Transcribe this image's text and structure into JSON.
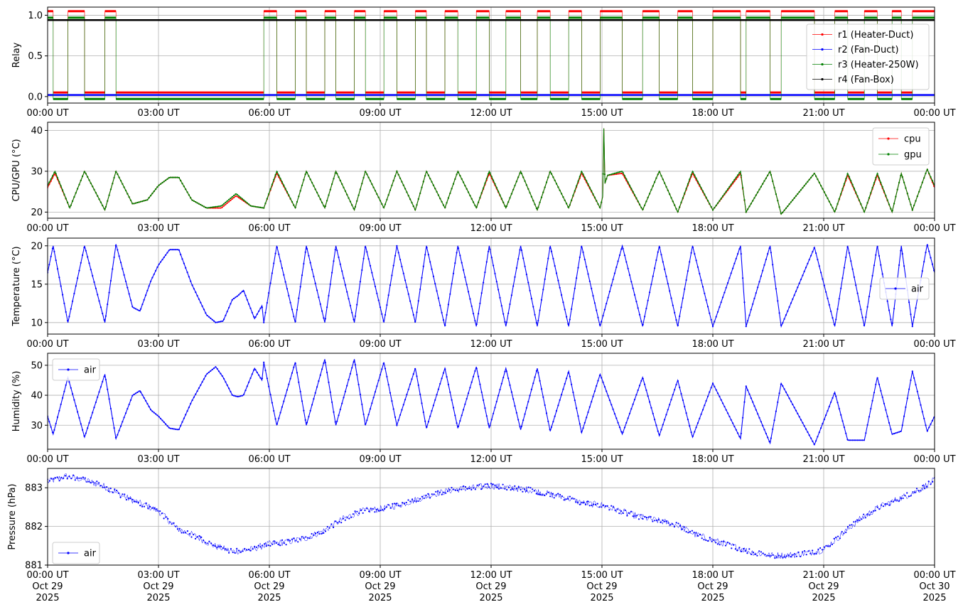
{
  "figure": {
    "x_ticks": [
      "00:00 UT",
      "03:00 UT",
      "06:00 UT",
      "09:00 UT",
      "12:00 UT",
      "15:00 UT",
      "18:00 UT",
      "21:00 UT",
      "00:00 UT"
    ],
    "x_date_labels": [
      [
        "Oct 29",
        "2025"
      ],
      [
        "Oct 29",
        "2025"
      ],
      [
        "Oct 29",
        "2025"
      ],
      [
        "Oct 29",
        "2025"
      ],
      [
        "Oct 29",
        "2025"
      ],
      [
        "Oct 29",
        "2025"
      ],
      [
        "Oct 29",
        "2025"
      ],
      [
        "Oct 29",
        "2025"
      ],
      [
        "Oct 30",
        "2025"
      ]
    ],
    "x_range_hours": [
      0,
      24
    ],
    "colors": {
      "red": "#ff0000",
      "blue": "#0000ff",
      "green": "#008000",
      "black": "#000000",
      "grid": "#b0b0b0"
    }
  },
  "chart_data": [
    {
      "type": "line",
      "ylabel": "Relay",
      "ylim": [
        -0.08,
        1.1
      ],
      "yticks": [
        0.0,
        0.5,
        1.0
      ],
      "ytick_labels": [
        "0.0",
        "0.5",
        "1.0"
      ],
      "grid": true,
      "legend": "right",
      "note": "heater/fan duct relays cycle ON (1) and OFF (0); r4 fan-box relay stays ON",
      "on_intervals_hours": [
        [
          0,
          0.15
        ],
        [
          0.55,
          1.0
        ],
        [
          1.55,
          1.85
        ],
        [
          5.85,
          6.2
        ],
        [
          6.7,
          7.0
        ],
        [
          7.5,
          7.8
        ],
        [
          8.3,
          8.6
        ],
        [
          9.1,
          9.45
        ],
        [
          9.95,
          10.25
        ],
        [
          10.75,
          11.1
        ],
        [
          11.6,
          11.95
        ],
        [
          12.4,
          12.8
        ],
        [
          13.25,
          13.6
        ],
        [
          14.1,
          14.45
        ],
        [
          14.95,
          15.55
        ],
        [
          16.1,
          16.55
        ],
        [
          17.05,
          17.45
        ],
        [
          18.0,
          18.75
        ],
        [
          18.9,
          19.55
        ],
        [
          19.85,
          20.75
        ],
        [
          21.3,
          21.65
        ],
        [
          22.1,
          22.45
        ],
        [
          22.85,
          23.1
        ],
        [
          23.4,
          24.0
        ]
      ],
      "series": [
        {
          "name": "r1 (Heater-Duct)",
          "color": "#ff0000",
          "on_value": 1.05,
          "off_value": 0.05
        },
        {
          "name": "r2 (Fan-Duct)",
          "color": "#0000ff",
          "constant": 0.02
        },
        {
          "name": "r3 (Heater-250W)",
          "color": "#008000",
          "on_value": 0.97,
          "off_value": -0.03
        },
        {
          "name": "r4 (Fan-Box)",
          "color": "#000000",
          "constant": 0.94
        }
      ]
    },
    {
      "type": "line",
      "ylabel": "CPU/GPU (°C)",
      "ylim": [
        18.5,
        42
      ],
      "yticks": [
        20,
        30,
        40
      ],
      "ytick_labels": [
        "20",
        "30",
        "40"
      ],
      "grid": true,
      "legend": "top-right",
      "spike": {
        "x_hours": 15.05,
        "peak": 40.5
      },
      "series": [
        {
          "name": "cpu",
          "color": "#ff0000",
          "x_hours": [
            0,
            0.2,
            0.6,
            1.0,
            1.55,
            1.85,
            2.3,
            2.7,
            3.0,
            3.3,
            3.55,
            3.9,
            4.3,
            4.7,
            5.1,
            5.5,
            5.85,
            6.2,
            6.7,
            7.0,
            7.5,
            7.8,
            8.3,
            8.6,
            9.1,
            9.45,
            9.95,
            10.25,
            10.75,
            11.1,
            11.6,
            11.95,
            12.4,
            12.8,
            13.25,
            13.6,
            14.1,
            14.45,
            14.95,
            15.15,
            15.55,
            16.1,
            16.55,
            17.05,
            17.45,
            18.0,
            18.75,
            18.9,
            19.55,
            19.85,
            20.75,
            21.3,
            21.65,
            22.1,
            22.45,
            22.85,
            23.1,
            23.4,
            23.8,
            24.0
          ],
          "values": [
            26,
            29.5,
            21,
            30,
            20.5,
            30,
            22,
            23,
            26.5,
            28.5,
            28.5,
            23,
            21,
            21,
            24,
            21.5,
            21,
            29.5,
            21,
            30,
            21,
            30,
            20.5,
            30,
            21,
            30,
            20.5,
            30,
            21,
            30,
            21,
            29.5,
            21,
            30,
            20.5,
            30,
            21,
            29.5,
            21,
            29,
            29.5,
            20.5,
            30,
            20,
            29.5,
            20.5,
            29.5,
            20,
            30,
            19.5,
            29.5,
            20,
            29,
            20,
            29,
            20,
            29.5,
            20.5,
            30.5,
            26
          ]
        },
        {
          "name": "gpu",
          "color": "#008000",
          "x_hours": [
            0,
            0.2,
            0.6,
            1.0,
            1.55,
            1.85,
            2.3,
            2.7,
            3.0,
            3.3,
            3.55,
            3.9,
            4.3,
            4.7,
            5.1,
            5.5,
            5.85,
            6.2,
            6.7,
            7.0,
            7.5,
            7.8,
            8.3,
            8.6,
            9.1,
            9.45,
            9.95,
            10.25,
            10.75,
            11.1,
            11.6,
            11.95,
            12.4,
            12.8,
            13.25,
            13.6,
            14.1,
            14.45,
            14.95,
            15.15,
            15.55,
            16.1,
            16.55,
            17.05,
            17.45,
            18.0,
            18.75,
            18.9,
            19.55,
            19.85,
            20.75,
            21.3,
            21.65,
            22.1,
            22.45,
            22.85,
            23.1,
            23.4,
            23.8,
            24.0
          ],
          "values": [
            26.5,
            30,
            21,
            30,
            20.5,
            30,
            22,
            23,
            26.5,
            28.5,
            28.5,
            23,
            21,
            21.5,
            24.5,
            21.5,
            21,
            30,
            21,
            30,
            21,
            30,
            20.5,
            30,
            21,
            30,
            20.5,
            30,
            21,
            30,
            21,
            30,
            21,
            30,
            20.5,
            30,
            21,
            30,
            21,
            29,
            30,
            20.5,
            30,
            20,
            30,
            20.5,
            30,
            20,
            30,
            19.5,
            29.5,
            20,
            29.5,
            20,
            29.5,
            20,
            29.5,
            20.5,
            30.5,
            26.5
          ]
        }
      ]
    },
    {
      "type": "line",
      "ylabel": "Temperature (°C)",
      "ylim": [
        8.5,
        21
      ],
      "yticks": [
        10,
        15,
        20
      ],
      "ytick_labels": [
        "10",
        "15",
        "20"
      ],
      "grid": true,
      "legend": "right",
      "series": [
        {
          "name": "air",
          "color": "#0000ff",
          "x_hours": [
            0,
            0.15,
            0.55,
            1.0,
            1.55,
            1.85,
            2.3,
            2.5,
            2.8,
            3.0,
            3.3,
            3.55,
            3.9,
            4.3,
            4.55,
            4.75,
            5.0,
            5.15,
            5.3,
            5.6,
            5.8,
            5.85,
            6.2,
            6.7,
            7.0,
            7.5,
            7.8,
            8.3,
            8.6,
            9.1,
            9.45,
            9.95,
            10.25,
            10.75,
            11.1,
            11.6,
            11.95,
            12.4,
            12.8,
            13.25,
            13.6,
            14.1,
            14.45,
            14.95,
            15.55,
            16.1,
            16.55,
            17.05,
            17.45,
            18.0,
            18.75,
            18.9,
            19.55,
            19.85,
            20.75,
            21.3,
            21.65,
            22.1,
            22.45,
            22.85,
            23.1,
            23.4,
            23.8,
            24.0
          ],
          "values": [
            16.5,
            20,
            10,
            20,
            10,
            20.2,
            12,
            11.5,
            15.5,
            17.5,
            19.5,
            19.5,
            15,
            11,
            10,
            10.2,
            13,
            13.5,
            14.2,
            10.5,
            12.2,
            10,
            20,
            10,
            20,
            10,
            20,
            10,
            20,
            10,
            20,
            10,
            20,
            9.5,
            20,
            9.5,
            20,
            9.5,
            20,
            9.5,
            20,
            9.5,
            20,
            9.5,
            20,
            9.5,
            20,
            9.5,
            20,
            9.5,
            20,
            9.5,
            20,
            9.5,
            19.8,
            9.5,
            20,
            9.5,
            20,
            9.5,
            20,
            9.5,
            20.2,
            16.5
          ]
        }
      ]
    },
    {
      "type": "line",
      "ylabel": "Humidity (%)",
      "ylim": [
        22,
        54
      ],
      "yticks": [
        30,
        40,
        50
      ],
      "ytick_labels": [
        "30",
        "40",
        "50"
      ],
      "grid": true,
      "legend": "top-left",
      "series": [
        {
          "name": "air",
          "color": "#0000ff",
          "x_hours": [
            0,
            0.15,
            0.55,
            1.0,
            1.55,
            1.85,
            2.3,
            2.5,
            2.8,
            3.0,
            3.3,
            3.55,
            3.9,
            4.3,
            4.55,
            4.75,
            5.0,
            5.15,
            5.3,
            5.6,
            5.8,
            5.85,
            6.2,
            6.7,
            7.0,
            7.5,
            7.8,
            8.3,
            8.6,
            9.1,
            9.45,
            9.95,
            10.25,
            10.75,
            11.1,
            11.6,
            11.95,
            12.4,
            12.8,
            13.25,
            13.6,
            14.1,
            14.45,
            14.95,
            15.55,
            16.1,
            16.55,
            17.05,
            17.45,
            18.0,
            18.75,
            18.9,
            19.55,
            19.85,
            20.75,
            21.3,
            21.65,
            22.1,
            22.45,
            22.85,
            23.1,
            23.4,
            23.8,
            24.0
          ],
          "values": [
            33,
            27,
            46,
            26,
            47,
            25.5,
            40,
            41.5,
            35,
            33,
            29,
            28.5,
            38,
            47,
            49.5,
            46,
            40,
            39.5,
            40,
            49,
            45,
            51,
            30,
            51,
            30,
            52,
            30,
            52,
            30,
            51,
            30,
            49,
            29,
            49,
            29,
            49.5,
            29,
            49,
            28.5,
            49,
            28,
            48,
            27.5,
            47,
            27,
            46,
            26.5,
            45,
            26,
            44,
            25.5,
            43,
            24,
            44,
            23.5,
            41,
            25,
            25,
            46,
            27,
            28,
            48,
            28,
            33
          ]
        }
      ]
    },
    {
      "type": "scatter",
      "ylabel": "Pressure (hPa)",
      "ylim": [
        881.0,
        883.5
      ],
      "yticks": [
        881,
        882,
        883
      ],
      "ytick_labels": [
        "881",
        "882",
        "883"
      ],
      "grid": true,
      "legend": "bottom-left",
      "series": [
        {
          "name": "air",
          "color": "#0000ff",
          "x_hours": [
            0,
            0.5,
            1.0,
            1.5,
            2.0,
            2.5,
            3.0,
            3.5,
            4.0,
            4.5,
            5.0,
            5.5,
            6.0,
            6.5,
            7.0,
            7.5,
            8.0,
            8.5,
            9.0,
            9.5,
            10.0,
            10.5,
            11.0,
            11.5,
            12.0,
            12.5,
            13.0,
            13.5,
            14.0,
            14.5,
            15.0,
            15.5,
            16.0,
            16.5,
            17.0,
            17.5,
            18.0,
            18.5,
            19.0,
            19.5,
            20.0,
            20.5,
            21.0,
            21.5,
            22.0,
            22.5,
            23.0,
            23.5,
            24.0
          ],
          "values": [
            883.15,
            883.3,
            883.2,
            883.05,
            882.8,
            882.6,
            882.4,
            881.95,
            881.75,
            881.5,
            881.35,
            881.4,
            881.55,
            881.6,
            881.7,
            881.9,
            882.2,
            882.4,
            882.45,
            882.55,
            882.7,
            882.85,
            882.95,
            883.0,
            883.05,
            883.0,
            882.95,
            882.85,
            882.75,
            882.6,
            882.55,
            882.4,
            882.25,
            882.15,
            882.05,
            881.8,
            881.65,
            881.5,
            881.35,
            881.25,
            881.25,
            881.3,
            881.4,
            881.8,
            882.2,
            882.5,
            882.7,
            882.9,
            883.2
          ]
        }
      ]
    }
  ]
}
